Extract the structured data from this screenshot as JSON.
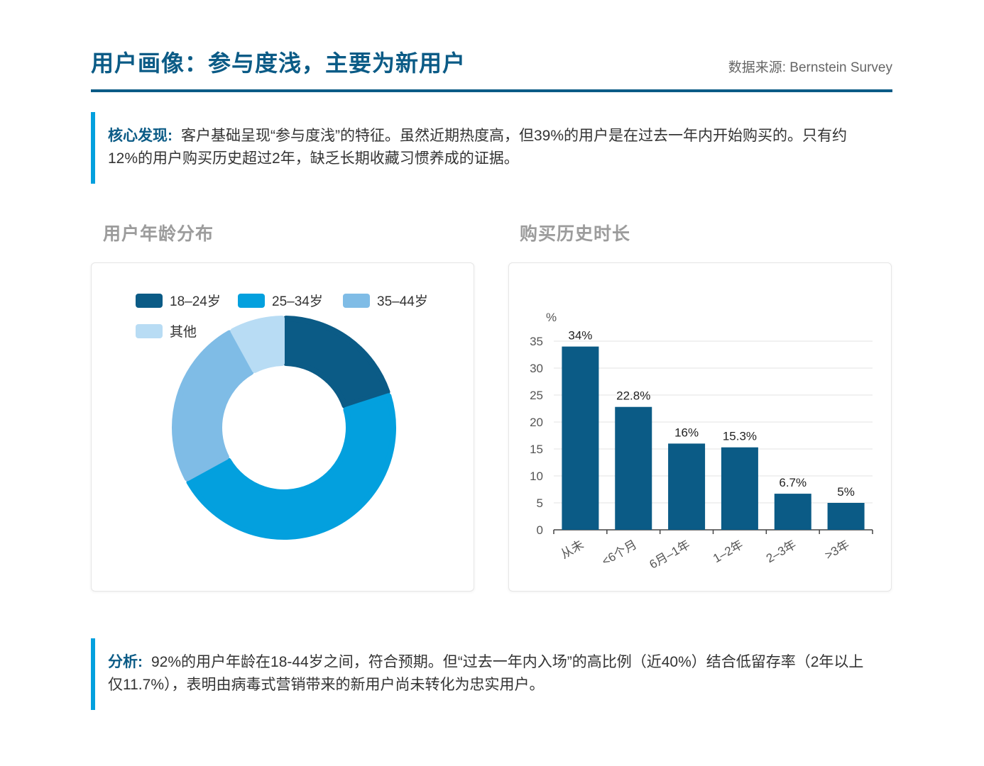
{
  "header": {
    "title": "用户画像：参与度浅，主要为新用户",
    "source": "数据来源: Bernstein Survey"
  },
  "finding": {
    "label": "核心发现:",
    "text": "客户基础呈现“参与度浅”的特征。虽然近期热度高，但39%的用户是在过去一年内开始购买的。只有约12%的用户购买历史超过2年，缺乏长期收藏习惯养成的证据。"
  },
  "analysis": {
    "label": "分析:",
    "text": "92%的用户年龄在18-44岁之间，符合预期。但“过去一年内入场”的高比例（近40%）结合低留存率（2年以上仅11.7%），表明由病毒式营销带来的新用户尚未转化为忠实用户。"
  },
  "age_section": {
    "title": "用户年龄分布"
  },
  "history_section": {
    "title": "购买历史时长"
  },
  "chart_data": [
    {
      "type": "pie",
      "title": "用户年龄分布",
      "donut": true,
      "legend": "top-left",
      "categories": [
        "18-24岁",
        "25-34岁",
        "35-44岁",
        "其他"
      ],
      "legend_labels": [
        "18–24岁",
        "25–34岁",
        "35–44岁",
        "其他"
      ],
      "values": [
        20,
        47,
        25,
        8
      ],
      "colors": [
        "#0b5b86",
        "#03a0de",
        "#7fbce6",
        "#b8dcf4"
      ]
    },
    {
      "type": "bar",
      "title": "购买历史时长",
      "ylabel": "%",
      "xlabel": "",
      "categories": [
        "从未",
        "<6个月",
        "6月–1年",
        "1–2年",
        "2–3年",
        ">3年"
      ],
      "values": [
        34,
        22.8,
        16,
        15.3,
        6.7,
        5
      ],
      "data_labels": [
        "34%",
        "22.8%",
        "16%",
        "15.3%",
        "6.7%",
        "5%"
      ],
      "ylim": [
        0,
        35
      ],
      "yticks": [
        0,
        5,
        10,
        15,
        20,
        25,
        30,
        35
      ],
      "grid": true,
      "color": "#0b5b86"
    }
  ]
}
